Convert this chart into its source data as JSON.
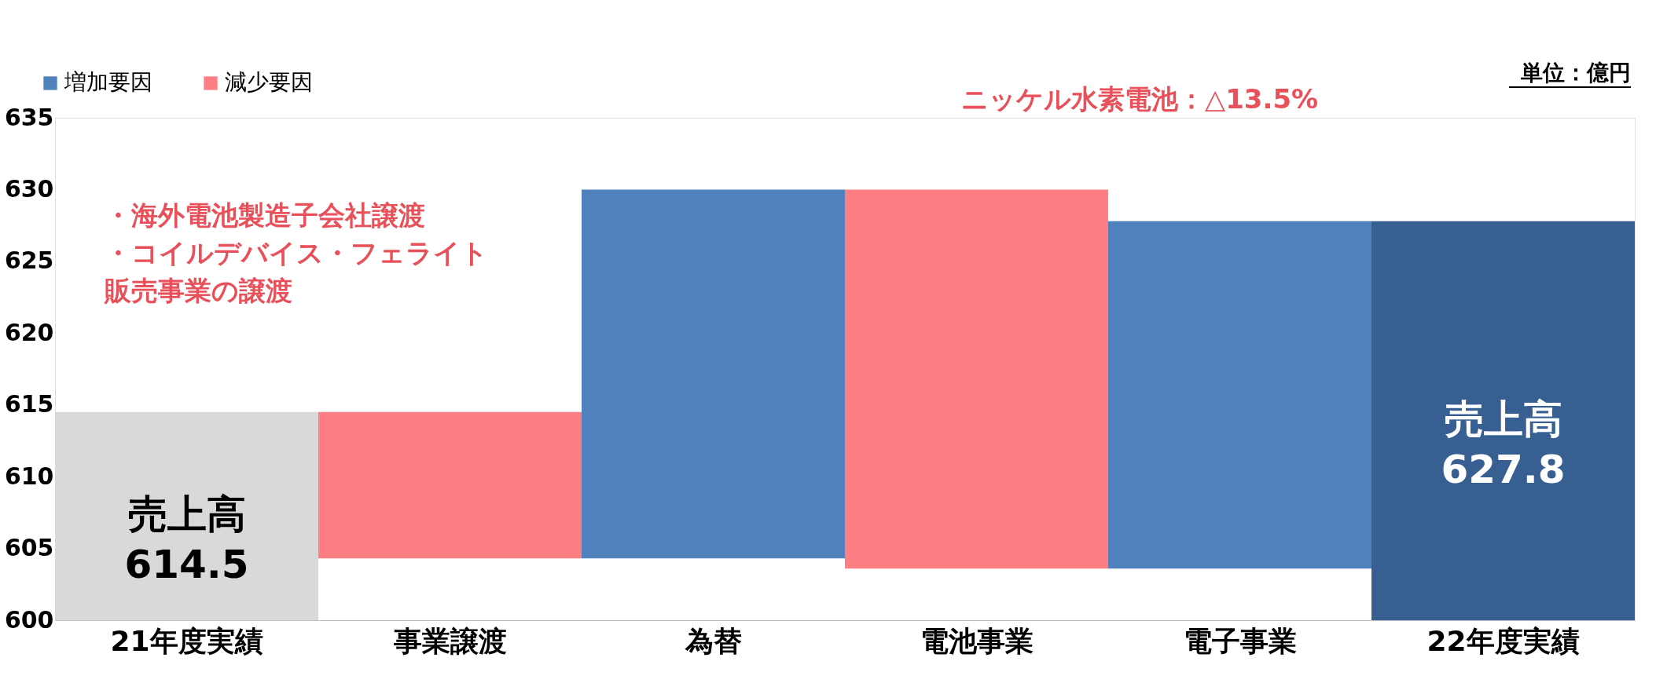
{
  "chart_data": {
    "type": "bar",
    "categories": [
      "21年度実績",
      "事業譲渡",
      "為替",
      "電池事業",
      "電子事業",
      "22年度実績"
    ],
    "series": [
      {
        "name": "増加要因",
        "color": "#4f81bd",
        "values": [
          null,
          null,
          25.7,
          null,
          24.2,
          null
        ],
        "base": [
          null,
          null,
          604.3,
          null,
          603.6,
          null
        ]
      },
      {
        "name": "減少要因",
        "color": "#fe7f83",
        "values": [
          null,
          -10.2,
          null,
          -26.4,
          null,
          null
        ],
        "base": [
          null,
          614.5,
          null,
          630.0,
          null,
          null
        ]
      },
      {
        "color": "#d9d9d9",
        "values": [
          614.5,
          null,
          null,
          null,
          null,
          null
        ],
        "value_labels": [
          "売上高\n614.5",
          null,
          null,
          null,
          null,
          null
        ]
      },
      {
        "color": "#375f92",
        "values": [
          null,
          null,
          null,
          null,
          null,
          627.8
        ],
        "value_labels": [
          null,
          null,
          null,
          null,
          null,
          "売上高\n627.8"
        ]
      }
    ],
    "ylim": [
      600,
      635
    ],
    "yticks": [
      600,
      605,
      610,
      615,
      620,
      625,
      630,
      635
    ],
    "grid": false,
    "legend": "top left",
    "annotations": [
      "単位：億円",
      "・海外電池製造子会社譲渡",
      "・コイルデバイス・フェライト販売事業の譲渡",
      "ニッケル水素電池：△13.5%"
    ]
  }
}
